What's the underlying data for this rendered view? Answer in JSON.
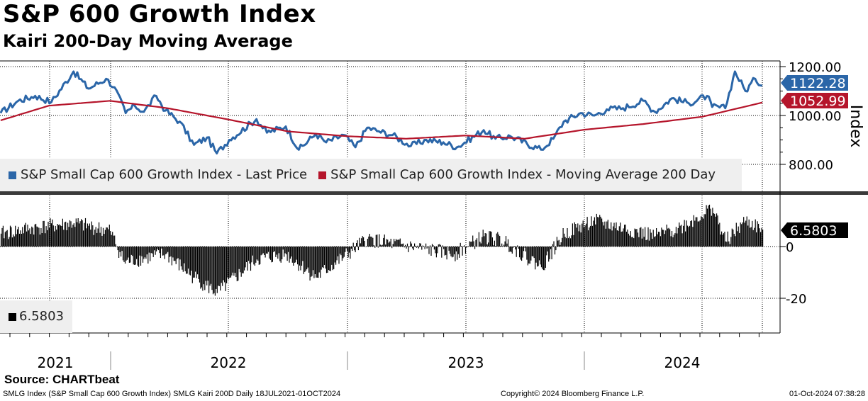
{
  "title": "S&P 600 Growth Index",
  "subtitle": "Kairi 200-Day Moving Average",
  "source": "Source: CHARTbeat",
  "footer": {
    "left": "SMLG Index (S&P Small Cap 600 Growth Index) SMLG Kairi 200D  Daily 18JUL2021-01OCT2024",
    "center": "Copyright© 2024 Bloomberg Finance L.P.",
    "right": "01-Oct-2024 07:38:28"
  },
  "colors": {
    "price": "#2b66a8",
    "ma": "#b5152b",
    "kairi": "#000000",
    "legend_bg": "#efefef",
    "grid": "#000000"
  },
  "legend": {
    "upper": [
      {
        "label": "S&P Small Cap 600 Growth Index - Last Price",
        "color": "#2b66a8"
      },
      {
        "label": "S&P Small Cap 600 Growth Index - Moving Average 200 Day",
        "color": "#b5152b"
      }
    ],
    "lower": [
      {
        "label": "6.5803",
        "color": "#000000"
      }
    ]
  },
  "axis": {
    "upper_label": "Index",
    "upper_ticks": [
      "1200.00",
      "1000.00",
      "800.00"
    ],
    "lower_ticks": [
      "0",
      "-20"
    ],
    "years": [
      "2021",
      "2022",
      "2023",
      "2024"
    ]
  },
  "value_tags": {
    "price": "1122.28",
    "ma": "1052.99",
    "kairi": "6.5803"
  },
  "chart_data": [
    {
      "type": "line",
      "title": "S&P 600 Growth Index",
      "ylabel": "Index",
      "ylim": [
        750,
        1200
      ],
      "x_range": [
        "2021-07-18",
        "2024-10-01"
      ],
      "series": [
        {
          "name": "S&P Small Cap 600 Growth Index - Last Price",
          "color": "#2b66a8",
          "x": [
            "2021-07-19",
            "2021-08-15",
            "2021-09-10",
            "2021-10-05",
            "2021-11-08",
            "2021-12-01",
            "2021-12-28",
            "2022-01-10",
            "2022-01-27",
            "2022-02-10",
            "2022-02-24",
            "2022-03-15",
            "2022-03-29",
            "2022-04-20",
            "2022-05-12",
            "2022-06-01",
            "2022-06-16",
            "2022-07-05",
            "2022-08-16",
            "2022-09-01",
            "2022-09-30",
            "2022-10-20",
            "2022-11-15",
            "2022-12-01",
            "2022-12-28",
            "2023-01-15",
            "2023-02-02",
            "2023-02-20",
            "2023-03-13",
            "2023-04-10",
            "2023-05-04",
            "2023-05-30",
            "2023-06-20",
            "2023-07-31",
            "2023-08-18",
            "2023-09-10",
            "2023-10-27",
            "2023-11-15",
            "2023-12-01",
            "2023-12-27",
            "2024-01-17",
            "2024-02-05",
            "2024-03-01",
            "2024-04-01",
            "2024-04-19",
            "2024-05-15",
            "2024-06-10",
            "2024-07-08",
            "2024-07-16",
            "2024-08-05",
            "2024-08-20",
            "2024-09-05",
            "2024-09-20",
            "2024-10-01"
          ],
          "values": [
            1010,
            1060,
            1080,
            1055,
            1180,
            1110,
            1150,
            1115,
            1010,
            1040,
            1015,
            1080,
            1020,
            975,
            880,
            910,
            845,
            900,
            985,
            930,
            955,
            860,
            925,
            890,
            920,
            870,
            950,
            935,
            920,
            875,
            900,
            890,
            870,
            940,
            905,
            915,
            860,
            905,
            975,
            1010,
            1000,
            1025,
            1030,
            1060,
            1015,
            1070,
            1050,
            1080,
            1035,
            1030,
            1180,
            1100,
            1150,
            1122.28
          ]
        },
        {
          "name": "S&P Small Cap 600 Growth Index - Moving Average 200 Day",
          "color": "#b5152b",
          "x": [
            "2021-07-19",
            "2021-10-01",
            "2022-01-03",
            "2022-04-01",
            "2022-07-01",
            "2022-10-03",
            "2023-01-03",
            "2023-04-03",
            "2023-07-03",
            "2023-10-02",
            "2024-01-02",
            "2024-04-01",
            "2024-07-01",
            "2024-10-01"
          ],
          "values": [
            980,
            1040,
            1060,
            1030,
            985,
            935,
            915,
            905,
            918,
            905,
            942,
            965,
            995,
            1052.99
          ]
        }
      ]
    },
    {
      "type": "bar",
      "title": "Kairi 200-Day Moving Average",
      "ylim": [
        -30,
        20
      ],
      "x_range": [
        "2021-07-18",
        "2024-10-01"
      ],
      "series": [
        {
          "name": "6.5803",
          "color": "#000000",
          "x": [
            "2021-07-19",
            "2021-09-01",
            "2021-11-08",
            "2022-01-03",
            "2022-01-24",
            "2022-03-29",
            "2022-05-12",
            "2022-06-16",
            "2022-08-16",
            "2022-09-30",
            "2022-11-15",
            "2022-12-28",
            "2023-02-02",
            "2023-03-13",
            "2023-05-01",
            "2023-06-15",
            "2023-07-31",
            "2023-09-01",
            "2023-10-27",
            "2023-12-01",
            "2024-01-15",
            "2024-03-01",
            "2024-04-19",
            "2024-06-01",
            "2024-07-16",
            "2024-08-05",
            "2024-09-05",
            "2024-10-01"
          ],
          "values": [
            5,
            7,
            9,
            6,
            -6,
            -3,
            -12,
            -18,
            -5,
            -3,
            -12,
            -4,
            3,
            1,
            -1,
            -3,
            4,
            2,
            -8,
            5,
            10,
            7,
            4,
            8,
            15,
            2,
            10,
            6.5803
          ]
        }
      ]
    }
  ]
}
